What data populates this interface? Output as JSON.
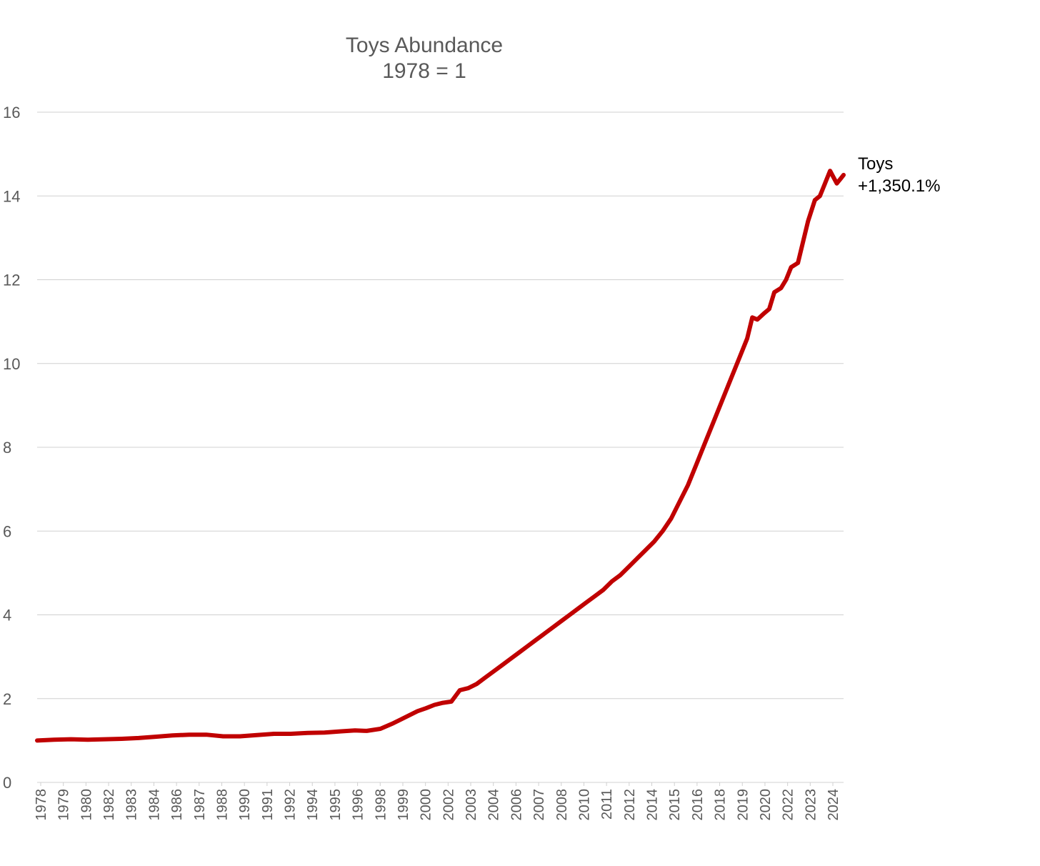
{
  "chart_data": {
    "type": "line",
    "title": "Toys Abundance",
    "subtitle": "1978 = 1",
    "xlabel": "",
    "ylabel": "",
    "ylim": [
      0,
      16
    ],
    "yticks": [
      "0",
      "2",
      "4",
      "6",
      "8",
      "10",
      "12",
      "14",
      "16"
    ],
    "xticks": [
      "1978",
      "1979",
      "1980",
      "1982",
      "1983",
      "1984",
      "1986",
      "1987",
      "1988",
      "1990",
      "1991",
      "1992",
      "1994",
      "1995",
      "1996",
      "1998",
      "1999",
      "2000",
      "2002",
      "2003",
      "2004",
      "2006",
      "2007",
      "2008",
      "2010",
      "2011",
      "2012",
      "2014",
      "2015",
      "2016",
      "2018",
      "2019",
      "2020",
      "2022",
      "2023",
      "2024"
    ],
    "grid": true,
    "legend": "end-of-line label",
    "series": [
      {
        "name": "Toys",
        "end_label": "+1,350.1%",
        "color": "#c00000",
        "x": [
          1978.0,
          1979.0,
          1980.0,
          1981.0,
          1982.0,
          1983.0,
          1984.0,
          1985.0,
          1986.0,
          1987.0,
          1988.0,
          1989.0,
          1990.0,
          1991.0,
          1992.0,
          1993.0,
          1994.0,
          1995.0,
          1996.0,
          1996.8,
          1997.5,
          1998.3,
          1999.0,
          1999.5,
          2000.0,
          2000.5,
          2001.0,
          2001.5,
          2002.0,
          2002.5,
          2003.0,
          2003.5,
          2004.0,
          2004.5,
          2005.0,
          2005.5,
          2006.0,
          2006.5,
          2007.0,
          2007.5,
          2008.0,
          2008.5,
          2009.0,
          2009.5,
          2010.0,
          2010.5,
          2011.0,
          2011.5,
          2012.0,
          2012.5,
          2013.0,
          2013.5,
          2014.0,
          2014.5,
          2015.0,
          2015.5,
          2016.0,
          2016.5,
          2017.0,
          2017.5,
          2018.0,
          2018.5,
          2019.0,
          2019.5,
          2020.0,
          2020.3,
          2020.6,
          2021.0,
          2021.3,
          2021.6,
          2022.0,
          2022.3,
          2022.6,
          2023.0,
          2023.3,
          2023.6,
          2024.0,
          2024.3,
          2024.6,
          2024.9,
          2025.1,
          2025.3,
          2025.5,
          2025.7
        ],
        "values": [
          1.0,
          1.02,
          1.03,
          1.02,
          1.03,
          1.04,
          1.06,
          1.09,
          1.12,
          1.14,
          1.14,
          1.1,
          1.1,
          1.13,
          1.16,
          1.16,
          1.18,
          1.19,
          1.22,
          1.24,
          1.23,
          1.28,
          1.4,
          1.5,
          1.6,
          1.7,
          1.77,
          1.85,
          1.9,
          1.93,
          2.2,
          2.25,
          2.35,
          2.5,
          2.65,
          2.8,
          2.95,
          3.1,
          3.25,
          3.4,
          3.55,
          3.7,
          3.85,
          4.0,
          4.15,
          4.3,
          4.45,
          4.6,
          4.8,
          4.95,
          5.15,
          5.35,
          5.55,
          5.75,
          6.0,
          6.3,
          6.7,
          7.1,
          7.6,
          8.1,
          8.6,
          9.1,
          9.6,
          10.1,
          10.6,
          11.1,
          11.05,
          11.2,
          11.3,
          11.7,
          11.8,
          12.0,
          12.3,
          12.4,
          12.9,
          13.4,
          13.9,
          14.0,
          14.3,
          14.6,
          14.45,
          14.3,
          14.4,
          14.5
        ]
      }
    ]
  }
}
